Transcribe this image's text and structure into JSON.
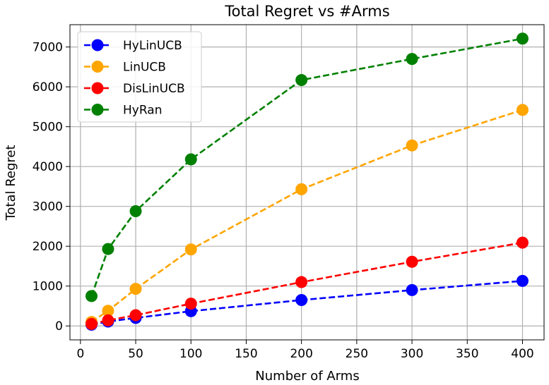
{
  "chart_data": {
    "type": "line",
    "title": "Total Regret vs #Arms",
    "xlabel": "Number of Arms",
    "ylabel": "Total Regret",
    "x": [
      10,
      25,
      50,
      100,
      200,
      300,
      400
    ],
    "xlim": [
      -9.5,
      419.5
    ],
    "ylim": [
      -350,
      7560
    ],
    "xticks": [
      0,
      50,
      100,
      150,
      200,
      250,
      300,
      350,
      400
    ],
    "yticks": [
      0,
      1000,
      2000,
      3000,
      4000,
      5000,
      6000,
      7000
    ],
    "grid": true,
    "legend_position": "top-left",
    "series": [
      {
        "name": "HyLinUCB",
        "color": "#0000ff",
        "values": [
          30,
          110,
          200,
          370,
          650,
          900,
          1130
        ]
      },
      {
        "name": "LinUCB",
        "color": "#ffa500",
        "values": [
          100,
          380,
          930,
          1920,
          3430,
          4530,
          5420
        ]
      },
      {
        "name": "DisLinUCB",
        "color": "#ff0000",
        "values": [
          50,
          140,
          270,
          560,
          1100,
          1610,
          2090
        ]
      },
      {
        "name": "HyRan",
        "color": "#008000",
        "values": [
          750,
          1930,
          2880,
          4180,
          6170,
          6700,
          7210
        ]
      }
    ]
  }
}
